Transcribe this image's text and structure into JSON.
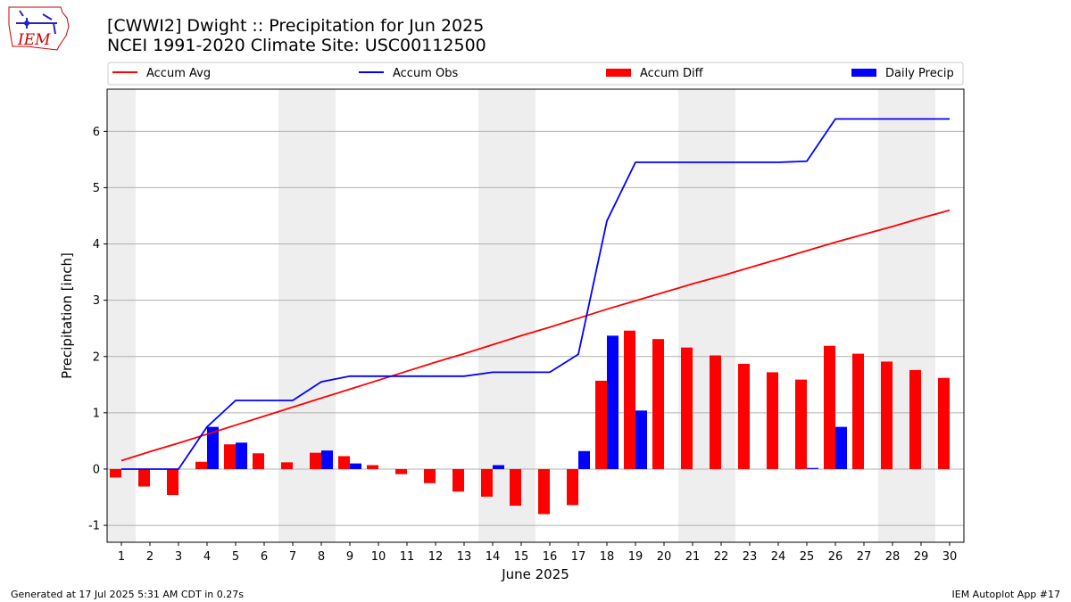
{
  "header": {
    "title_line1": "[CWWI2] Dwight :: Precipitation for Jun 2025",
    "title_line2": "NCEI 1991-2020 Climate Site: USC00112500",
    "logo_text": "IEM"
  },
  "footer": {
    "generated": "Generated at 17 Jul 2025 5:31 AM CDT in 0.27s",
    "app": "IEM Autoplot App #17"
  },
  "colors": {
    "accum_avg": "#ff0000",
    "accum_obs": "#0000ff",
    "accum_diff": "#ff0000",
    "daily_precip": "#0000ff",
    "weekend_band": "#eeeeee",
    "grid": "#b0b0b0"
  },
  "chart_data": {
    "type": "bar",
    "xlabel": "June 2025",
    "ylabel": "Precipitation [inch]",
    "ylim": [
      -1.3,
      6.75
    ],
    "yticks": [
      -1,
      0,
      1,
      2,
      3,
      4,
      5,
      6
    ],
    "grid": true,
    "legend_position": "top",
    "categories": [
      "1",
      "2",
      "3",
      "4",
      "5",
      "6",
      "7",
      "8",
      "9",
      "10",
      "11",
      "12",
      "13",
      "14",
      "15",
      "16",
      "17",
      "18",
      "19",
      "20",
      "21",
      "22",
      "23",
      "24",
      "25",
      "26",
      "27",
      "28",
      "29",
      "30"
    ],
    "weekend_days": [
      1,
      7,
      8,
      14,
      15,
      21,
      22,
      28,
      29
    ],
    "series": [
      {
        "name": "Accum Avg",
        "kind": "line",
        "values": [
          0.15,
          0.31,
          0.46,
          0.62,
          0.78,
          0.94,
          1.1,
          1.26,
          1.42,
          1.58,
          1.74,
          1.9,
          2.05,
          2.21,
          2.37,
          2.52,
          2.68,
          2.84,
          2.99,
          3.14,
          3.29,
          3.43,
          3.58,
          3.73,
          3.88,
          4.03,
          4.17,
          4.31,
          4.46,
          4.6
        ]
      },
      {
        "name": "Accum Obs",
        "kind": "line",
        "values": [
          0.0,
          0.0,
          0.0,
          0.75,
          1.22,
          1.22,
          1.22,
          1.55,
          1.65,
          1.65,
          1.65,
          1.65,
          1.65,
          1.72,
          1.72,
          1.72,
          2.04,
          4.41,
          5.45,
          5.45,
          5.45,
          5.45,
          5.45,
          5.45,
          5.47,
          6.22,
          6.22,
          6.22,
          6.22,
          6.22
        ]
      },
      {
        "name": "Accum Diff",
        "kind": "bar",
        "values": [
          -0.15,
          -0.31,
          -0.46,
          0.13,
          0.44,
          0.28,
          0.12,
          0.29,
          0.23,
          0.07,
          -0.09,
          -0.25,
          -0.4,
          -0.49,
          -0.65,
          -0.8,
          -0.64,
          1.57,
          2.46,
          2.31,
          2.16,
          2.02,
          1.87,
          1.72,
          1.59,
          2.19,
          2.05,
          1.91,
          1.76,
          1.62
        ]
      },
      {
        "name": "Daily Precip",
        "kind": "bar",
        "values": [
          0,
          0,
          0,
          0.75,
          0.47,
          0,
          0,
          0.33,
          0.1,
          0,
          0,
          0,
          0,
          0.07,
          0,
          0,
          0.32,
          2.37,
          1.04,
          0,
          0,
          0,
          0,
          0,
          0.02,
          0.75,
          0,
          0,
          0,
          0
        ]
      }
    ]
  }
}
